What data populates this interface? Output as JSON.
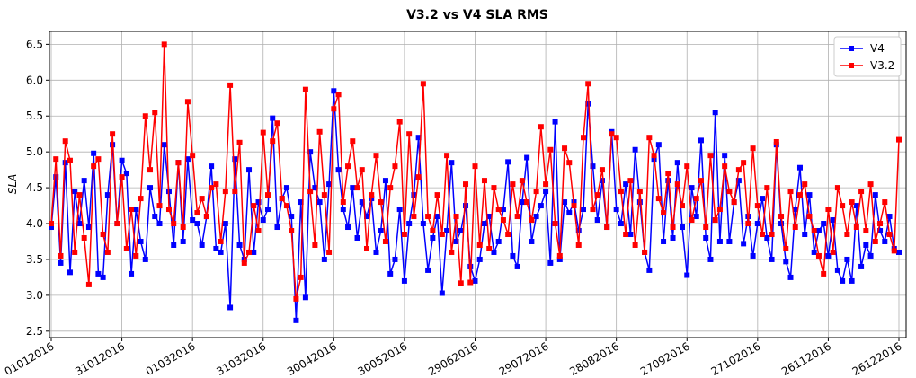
{
  "chart_data": {
    "type": "line",
    "title": "V3.2 vs V4 SLA RMS",
    "y_label": "SLA",
    "categories": [
      "01012016",
      null,
      null,
      null,
      null,
      null,
      null,
      null,
      null,
      null,
      null,
      null,
      null,
      null,
      null,
      "31012016",
      null,
      null,
      null,
      null,
      null,
      null,
      null,
      null,
      null,
      null,
      null,
      null,
      null,
      null,
      "01032016",
      null,
      null,
      null,
      null,
      null,
      null,
      null,
      null,
      null,
      null,
      null,
      null,
      null,
      null,
      "31032016",
      null,
      null,
      null,
      null,
      null,
      null,
      null,
      null,
      null,
      null,
      null,
      null,
      null,
      null,
      "30042016",
      null,
      null,
      null,
      null,
      null,
      null,
      null,
      null,
      null,
      null,
      null,
      null,
      null,
      null,
      "30052016",
      null,
      null,
      null,
      null,
      null,
      null,
      null,
      null,
      null,
      null,
      null,
      null,
      null,
      null,
      "29062016",
      null,
      null,
      null,
      null,
      null,
      null,
      null,
      null,
      null,
      null,
      null,
      null,
      null,
      null,
      "29072016",
      null,
      null,
      null,
      null,
      null,
      null,
      null,
      null,
      null,
      null,
      null,
      null,
      null,
      null,
      "28082016",
      null,
      null,
      null,
      null,
      null,
      null,
      null,
      null,
      null,
      null,
      null,
      null,
      null,
      null,
      "27092016",
      null,
      null,
      null,
      null,
      null,
      null,
      null,
      null,
      null,
      null,
      null,
      null,
      null,
      null,
      "27102016",
      null,
      null,
      null,
      null,
      null,
      null,
      null,
      null,
      null,
      null,
      null,
      null,
      null,
      null,
      "26112016",
      null,
      null,
      null,
      null,
      null,
      null,
      null,
      null,
      null,
      null,
      null,
      null,
      null,
      null,
      "26122016"
    ],
    "series": [
      {
        "name": "V4",
        "color": "#0000ff",
        "values": [
          3.95,
          4.65,
          3.45,
          4.85,
          3.32,
          4.45,
          4.0,
          4.6,
          3.95,
          4.98,
          3.3,
          3.25,
          4.4,
          5.1,
          4.0,
          4.88,
          4.7,
          3.3,
          4.2,
          3.75,
          3.5,
          4.5,
          4.1,
          4.0,
          5.1,
          4.45,
          3.7,
          4.85,
          3.75,
          4.9,
          4.05,
          4.0,
          3.7,
          4.1,
          4.8,
          3.65,
          3.6,
          4.0,
          2.83,
          4.9,
          3.7,
          3.5,
          4.75,
          3.6,
          4.3,
          4.05,
          4.2,
          5.47,
          3.95,
          4.35,
          4.5,
          4.1,
          2.65,
          4.3,
          2.97,
          5.0,
          4.5,
          4.3,
          3.5,
          4.55,
          5.85,
          4.75,
          4.2,
          3.95,
          4.5,
          3.8,
          4.3,
          4.1,
          4.35,
          3.6,
          3.9,
          4.6,
          3.3,
          3.5,
          4.2,
          3.2,
          4.0,
          4.4,
          5.2,
          4.0,
          3.35,
          3.8,
          4.1,
          3.03,
          3.9,
          4.85,
          3.75,
          3.9,
          4.25,
          3.4,
          3.2,
          3.5,
          4.0,
          4.1,
          3.6,
          3.75,
          4.2,
          4.86,
          3.55,
          3.4,
          4.3,
          4.92,
          3.75,
          4.1,
          4.25,
          4.45,
          3.45,
          5.42,
          3.5,
          4.3,
          4.15,
          4.3,
          3.9,
          4.2,
          5.67,
          4.8,
          4.05,
          4.6,
          3.95,
          5.28,
          4.2,
          4.0,
          4.55,
          3.85,
          5.03,
          4.3,
          3.6,
          3.35,
          4.9,
          5.1,
          3.75,
          4.6,
          3.8,
          4.85,
          3.95,
          3.28,
          4.5,
          4.1,
          5.16,
          3.8,
          3.5,
          5.55,
          3.75,
          4.95,
          3.75,
          4.3,
          4.6,
          3.72,
          4.1,
          3.55,
          4.0,
          4.35,
          3.8,
          3.5,
          5.1,
          4.0,
          3.47,
          3.25,
          4.2,
          4.78,
          3.85,
          4.4,
          3.6,
          3.9,
          4.0,
          3.55,
          4.05,
          3.35,
          3.2,
          3.5,
          3.2,
          4.25,
          3.4,
          3.7,
          3.55,
          4.4,
          3.9,
          3.75,
          4.1,
          3.65,
          3.6
        ]
      },
      {
        "name": "V3.2",
        "color": "#ff0000",
        "values": [
          4.0,
          4.9,
          3.55,
          5.15,
          4.88,
          3.6,
          4.4,
          3.8,
          3.15,
          4.8,
          4.9,
          3.85,
          3.6,
          5.25,
          4.0,
          4.65,
          3.65,
          4.2,
          3.55,
          4.35,
          5.5,
          4.75,
          5.55,
          4.25,
          6.5,
          4.2,
          4.0,
          4.85,
          3.95,
          5.7,
          4.95,
          4.15,
          4.35,
          4.1,
          4.5,
          4.55,
          3.75,
          4.45,
          5.93,
          4.45,
          5.13,
          3.45,
          3.6,
          4.25,
          3.9,
          5.27,
          4.4,
          5.15,
          5.4,
          4.35,
          4.25,
          3.9,
          2.95,
          3.25,
          5.87,
          4.45,
          3.7,
          5.28,
          4.4,
          3.6,
          5.6,
          5.8,
          4.3,
          4.8,
          5.15,
          4.5,
          4.75,
          3.65,
          4.4,
          4.95,
          4.3,
          3.75,
          4.5,
          4.8,
          5.42,
          3.85,
          5.25,
          4.1,
          4.65,
          5.95,
          4.1,
          3.9,
          4.4,
          3.85,
          4.95,
          3.6,
          4.1,
          3.17,
          4.55,
          3.18,
          4.8,
          3.7,
          4.6,
          3.65,
          4.5,
          4.2,
          4.05,
          3.85,
          4.55,
          4.1,
          4.6,
          4.3,
          4.05,
          4.45,
          5.35,
          4.55,
          5.03,
          4.0,
          3.55,
          5.05,
          4.85,
          4.25,
          3.7,
          5.2,
          5.95,
          4.2,
          4.4,
          4.75,
          3.95,
          5.25,
          5.2,
          4.45,
          3.85,
          4.6,
          3.7,
          4.45,
          3.6,
          5.2,
          4.95,
          4.35,
          4.15,
          4.7,
          3.95,
          4.55,
          4.25,
          4.8,
          4.05,
          4.35,
          4.6,
          3.95,
          4.95,
          4.05,
          4.2,
          4.8,
          4.45,
          4.3,
          4.75,
          4.85,
          4.0,
          5.05,
          4.25,
          3.85,
          4.5,
          3.85,
          5.14,
          4.1,
          3.65,
          4.45,
          3.95,
          4.4,
          4.55,
          4.1,
          3.9,
          3.55,
          3.3,
          4.2,
          3.6,
          4.5,
          4.25,
          3.85,
          4.3,
          3.95,
          4.45,
          3.9,
          4.55,
          3.75,
          4.0,
          4.3,
          3.85,
          3.62,
          5.17
        ]
      }
    ],
    "ylim": [
      2.41,
      6.68
    ],
    "yticks": [
      2.5,
      {
        "value": 3,
        "label": "3.0"
      },
      3.5,
      {
        "value": 4,
        "label": "4.0"
      },
      4.5,
      {
        "value": 5,
        "label": "5.0"
      },
      5.5,
      {
        "value": 6,
        "label": "6.0"
      },
      6.5
    ],
    "grid": true,
    "legend": "upper right"
  }
}
